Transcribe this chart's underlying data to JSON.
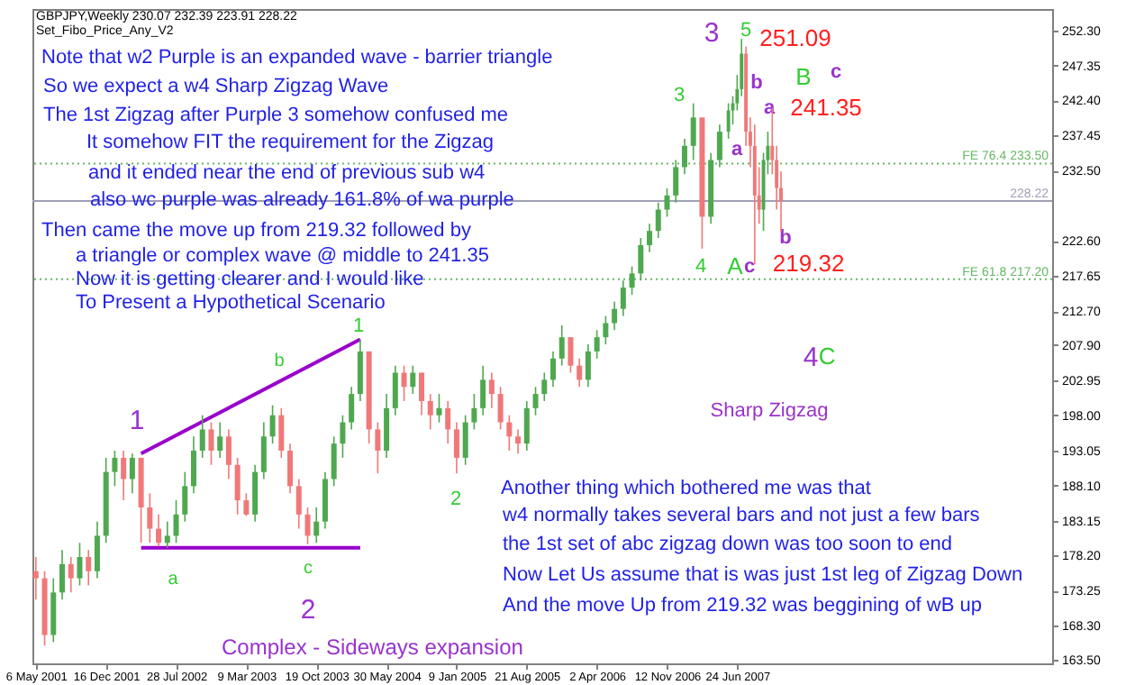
{
  "chart_data": {
    "type": "candlestick",
    "title": "GBPJPY,Weekly  230.07 232.39 223.91 228.22",
    "subtitle": "Set_Fibo_Price_Any_V2",
    "x": [
      "2001-05-06",
      "2001-06-03",
      "2001-07-01",
      "2001-07-29",
      "2001-08-26",
      "2001-09-23",
      "2001-10-21",
      "2001-11-18",
      "2001-12-16",
      "2002-01-13",
      "2002-02-10",
      "2002-03-10",
      "2002-04-07",
      "2002-05-05",
      "2002-06-02",
      "2002-06-30",
      "2002-07-28",
      "2002-08-25",
      "2002-09-22",
      "2002-10-20",
      "2002-11-17",
      "2002-12-15",
      "2003-01-12",
      "2003-02-09",
      "2003-03-09",
      "2003-04-06",
      "2003-05-04",
      "2003-06-01",
      "2003-06-29",
      "2003-07-27",
      "2003-08-24",
      "2003-09-21",
      "2003-10-19",
      "2003-11-16",
      "2003-12-14",
      "2004-01-11",
      "2004-02-08",
      "2004-03-07",
      "2004-04-04",
      "2004-05-02",
      "2004-05-30",
      "2004-06-27",
      "2004-07-25",
      "2004-08-22",
      "2004-09-19",
      "2004-10-17",
      "2004-11-14",
      "2004-12-12",
      "2005-01-09",
      "2005-02-06",
      "2005-03-06",
      "2005-04-03",
      "2005-05-01",
      "2005-05-29",
      "2005-06-26",
      "2005-07-24",
      "2005-08-21",
      "2005-09-18",
      "2005-10-16",
      "2005-11-13",
      "2005-12-11",
      "2006-01-08",
      "2006-02-05",
      "2006-03-05",
      "2006-04-02",
      "2006-04-30",
      "2006-05-28",
      "2006-06-25",
      "2006-07-23",
      "2006-08-20",
      "2006-09-17",
      "2006-10-15",
      "2006-11-12",
      "2006-12-10",
      "2007-01-07",
      "2007-02-04",
      "2007-03-04",
      "2007-04-01",
      "2007-04-29",
      "2007-05-27",
      "2007-06-10",
      "2007-06-24",
      "2007-07-08",
      "2007-07-22",
      "2007-08-05",
      "2007-08-19",
      "2007-09-02",
      "2007-09-16",
      "2007-09-30",
      "2007-10-14",
      "2007-10-28",
      "2007-11-11"
    ],
    "ohlc": [
      [
        176,
        178,
        172,
        175
      ],
      [
        175,
        176,
        165.5,
        167
      ],
      [
        167,
        175,
        166,
        173
      ],
      [
        173,
        179,
        172,
        177
      ],
      [
        177,
        178,
        173,
        175
      ],
      [
        175,
        180,
        174,
        178
      ],
      [
        178,
        179,
        174,
        176
      ],
      [
        176,
        183,
        175,
        181
      ],
      [
        181,
        192,
        180,
        190
      ],
      [
        190,
        193,
        188,
        192
      ],
      [
        192,
        193,
        186,
        189
      ],
      [
        189,
        192.6,
        187,
        192
      ],
      [
        192,
        192,
        180,
        185
      ],
      [
        185,
        187,
        180,
        182
      ],
      [
        182,
        184,
        179.5,
        180
      ],
      [
        180,
        183,
        179.3,
        181
      ],
      [
        181,
        186,
        180,
        184
      ],
      [
        184,
        190,
        183,
        188
      ],
      [
        188,
        195,
        187,
        193
      ],
      [
        193,
        198,
        192,
        196
      ],
      [
        196,
        197,
        191,
        193
      ],
      [
        193,
        197,
        192,
        195
      ],
      [
        195,
        196,
        189,
        191
      ],
      [
        191,
        192,
        184,
        186
      ],
      [
        186,
        187,
        183.8,
        184
      ],
      [
        184,
        191,
        183,
        190
      ],
      [
        190,
        197,
        189,
        195
      ],
      [
        195,
        199.4,
        194,
        198
      ],
      [
        198,
        199,
        192,
        193
      ],
      [
        193,
        194,
        187,
        188
      ],
      [
        188,
        189,
        182,
        184
      ],
      [
        184,
        185,
        179.8,
        181
      ],
      [
        181,
        185,
        180,
        183
      ],
      [
        183,
        190,
        182,
        189
      ],
      [
        189,
        195,
        188,
        194
      ],
      [
        194,
        198,
        192,
        197
      ],
      [
        197,
        202,
        196,
        201
      ],
      [
        201,
        208.7,
        200,
        207
      ],
      [
        207,
        207,
        194,
        196
      ],
      [
        196,
        197,
        189.8,
        193
      ],
      [
        193,
        201,
        192,
        199
      ],
      [
        199,
        205,
        198,
        204
      ],
      [
        204,
        205,
        200,
        202
      ],
      [
        202,
        205,
        201,
        204
      ],
      [
        204,
        204,
        198,
        200
      ],
      [
        200,
        201,
        196,
        198
      ],
      [
        198,
        201,
        197,
        199
      ],
      [
        199,
        200,
        194,
        196
      ],
      [
        196,
        197,
        189.8,
        192
      ],
      [
        192,
        198,
        191,
        197
      ],
      [
        197,
        201,
        196,
        199
      ],
      [
        199,
        205,
        198,
        203
      ],
      [
        203,
        204,
        199,
        201
      ],
      [
        201,
        202,
        196,
        197
      ],
      [
        197,
        198,
        193,
        195
      ],
      [
        195,
        196,
        192.6,
        194
      ],
      [
        194,
        200,
        193,
        199
      ],
      [
        199,
        202,
        198,
        201
      ],
      [
        201,
        204,
        200,
        203
      ],
      [
        203,
        207,
        202,
        206
      ],
      [
        206,
        210.7,
        205,
        209
      ],
      [
        209,
        209,
        204,
        205
      ],
      [
        205,
        206,
        202,
        203
      ],
      [
        203,
        208,
        202,
        207
      ],
      [
        207,
        210,
        206,
        209
      ],
      [
        209,
        212,
        208,
        211
      ],
      [
        211,
        214,
        210,
        213
      ],
      [
        213,
        217,
        212,
        216
      ],
      [
        216,
        219,
        215,
        218
      ],
      [
        218,
        223,
        217,
        222
      ],
      [
        222,
        225,
        221,
        224
      ],
      [
        224,
        228,
        223,
        227
      ],
      [
        227,
        230,
        226,
        229
      ],
      [
        229,
        234,
        228,
        233
      ],
      [
        233,
        237,
        232,
        236
      ],
      [
        236,
        242,
        234,
        240
      ],
      [
        240,
        240,
        221.5,
        226
      ],
      [
        226,
        235,
        225,
        234
      ],
      [
        234,
        239,
        233,
        238
      ],
      [
        238,
        242,
        237,
        241
      ],
      [
        241,
        243,
        239,
        242
      ],
      [
        242,
        246,
        241,
        244
      ],
      [
        244,
        251.09,
        243,
        249
      ],
      [
        249,
        250,
        236,
        238
      ],
      [
        238,
        240,
        233,
        236
      ],
      [
        236,
        239,
        219.32,
        229
      ],
      [
        229,
        233,
        225,
        227
      ],
      [
        227,
        235,
        224,
        234
      ],
      [
        234,
        238,
        232,
        236
      ],
      [
        236,
        241.35,
        232,
        234
      ],
      [
        234,
        236,
        227,
        230.07
      ],
      [
        230.07,
        232.39,
        223.91,
        228.22
      ]
    ],
    "series": [
      {
        "type": "line",
        "x": [
          "2002-04-07",
          "2004-03-07"
        ],
        "values": [
          192.6,
          208.7
        ],
        "color": "#9900cc"
      },
      {
        "type": "line",
        "x": [
          "2002-04-07",
          "2004-03-07"
        ],
        "values": [
          179.3,
          179.3
        ],
        "color": "#9900cc"
      }
    ],
    "xlim": [
      "2001-04-25",
      "2010-03-26"
    ],
    "xticks": [
      {
        "value": "2001-05-06",
        "label": "6 May 2001"
      },
      {
        "value": "2001-12-16",
        "label": "16 Dec 2001"
      },
      {
        "value": "2002-07-28",
        "label": "28 Jul 2002"
      },
      {
        "value": "2003-03-09",
        "label": "9 Mar 2003"
      },
      {
        "value": "2003-10-19",
        "label": "19 Oct 2003"
      },
      {
        "value": "2004-05-30",
        "label": "30 May 2004"
      },
      {
        "value": "2005-01-09",
        "label": "9 Jan 2005"
      },
      {
        "value": "2005-08-21",
        "label": "21 Aug 2005"
      },
      {
        "value": "2006-04-02",
        "label": "2 Apr 2006"
      },
      {
        "value": "2006-11-12",
        "label": "12 Nov 2006"
      },
      {
        "value": "2007-06-24",
        "label": "24 Jun 2007"
      }
    ],
    "ylim": [
      163,
      255.3
    ],
    "yticks": [
      {
        "value": 163.5,
        "label": "163.50"
      },
      {
        "value": 168.3,
        "label": "168.30"
      },
      {
        "value": 173.25,
        "label": "173.25"
      },
      {
        "value": 178.2,
        "label": "178.20"
      },
      {
        "value": 183.15,
        "label": "183.15"
      },
      {
        "value": 188.1,
        "label": "188.10"
      },
      {
        "value": 193.05,
        "label": "193.05"
      },
      {
        "value": 198,
        "label": "198.00"
      },
      {
        "value": 202.95,
        "label": "202.95"
      },
      {
        "value": 207.9,
        "label": "207.90"
      },
      {
        "value": 212.7,
        "label": "212.70"
      },
      {
        "value": 217.65,
        "label": "217.65"
      },
      {
        "value": 222.6,
        "label": "222.60"
      },
      {
        "value": 232.5,
        "label": "232.50"
      },
      {
        "value": 237.45,
        "label": "237.45"
      },
      {
        "value": 242.4,
        "label": "242.40"
      },
      {
        "value": 247.35,
        "label": "247.35"
      },
      {
        "value": 252.3,
        "label": "252.30"
      }
    ],
    "ref_lines": [
      {
        "axis": "y",
        "value": 233.5,
        "label": "FE 76.4  233.50",
        "color": "#66b866",
        "line_style": "dotted"
      },
      {
        "axis": "y",
        "value": 217.2,
        "label": "FE 61.8  217.20",
        "color": "#66b866",
        "line_style": "dotted"
      },
      {
        "axis": "y",
        "value": 228.22,
        "label": "228.22",
        "color": "#a0a0b8",
        "line_style": "solid"
      }
    ],
    "annotations": [
      "Note that w2 Purple is an expanded wave - barrier triangle",
      "So we expect a w4 Sharp Zigzag Wave",
      "The 1st Zigzag  after Purple 3 somehow confused me",
      "It somehow FIT the requirement for the Zigzag",
      "and it ended near the end of previous sub w4",
      "also  wc purple was already 161.8% of wa purple",
      "Then came the move up from 219.32 followed by",
      "a triangle or complex wave @ middle to 241.35",
      "Now it is getting clearer and I would like",
      "To Present a Hypothetical Scenario",
      "Another thing which bothered me was that",
      "w4 normally takes several bars and not just a few bars",
      "the 1st set of abc zigzag down was too soon to end",
      "Now Let Us assume  that is was just 1st leg of Zigzag Down",
      "And the move Up from 219.32 was beggining of wB up",
      "Sharp Zigzag",
      "Complex - Sideways expansion",
      "1",
      "2",
      "3",
      "4",
      "a",
      "b",
      "c",
      "a",
      "b",
      "c",
      "1",
      "2",
      "3",
      "4",
      "5",
      "A",
      "B",
      "C",
      "a",
      "b",
      "c",
      {
        "text": "251.09",
        "x": "2007-07-08",
        "y": 251.09
      },
      {
        "text": "241.35",
        "x": "2007-10-14",
        "y": 241.35
      },
      {
        "text": "219.32",
        "x": "2007-08-19",
        "y": 219.32
      }
    ]
  }
}
